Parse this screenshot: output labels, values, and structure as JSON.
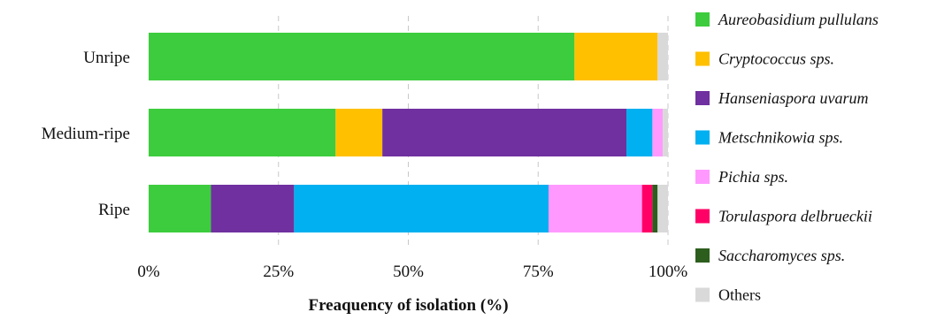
{
  "chart_data": {
    "type": "bar",
    "orientation": "horizontal",
    "stacked": true,
    "xlabel": "Freaquency of isolation (%)",
    "ylabel": "",
    "xlim": [
      0,
      100
    ],
    "x_ticks": [
      "0%",
      "25%",
      "50%",
      "75%",
      "100%"
    ],
    "x_tick_values": [
      0,
      25,
      50,
      75,
      100
    ],
    "grid": "vertical-dashed",
    "legend_position": "right",
    "categories": [
      "Unripe",
      "Medium-ripe",
      "Ripe"
    ],
    "series": [
      {
        "name": "Aureobasidium pullulans",
        "italic": true,
        "color": "#3dcc3d",
        "values": [
          82,
          36,
          12
        ]
      },
      {
        "name": "Cryptococcus sps.",
        "italic": true,
        "color": "#ffc000",
        "values": [
          16,
          9,
          0
        ]
      },
      {
        "name": "Hanseniaspora uvarum",
        "italic": true,
        "color": "#7030a0",
        "values": [
          0,
          47,
          16
        ]
      },
      {
        "name": "Metschnikowia sps.",
        "italic": true,
        "color": "#00b0f0",
        "values": [
          0,
          5,
          49
        ]
      },
      {
        "name": "Pichia sps.",
        "italic": true,
        "color": "#ff99ff",
        "values": [
          0,
          2,
          18
        ]
      },
      {
        "name": "Torulaspora delbrueckii",
        "italic": true,
        "color": "#ff0066",
        "values": [
          0,
          0,
          2
        ]
      },
      {
        "name": "Saccharomyces sps.",
        "italic": true,
        "color": "#2e5e1e",
        "values": [
          0,
          0,
          1
        ]
      },
      {
        "name": "Others",
        "italic": false,
        "color": "#d9d9d9",
        "values": [
          2,
          1,
          2
        ]
      }
    ]
  }
}
